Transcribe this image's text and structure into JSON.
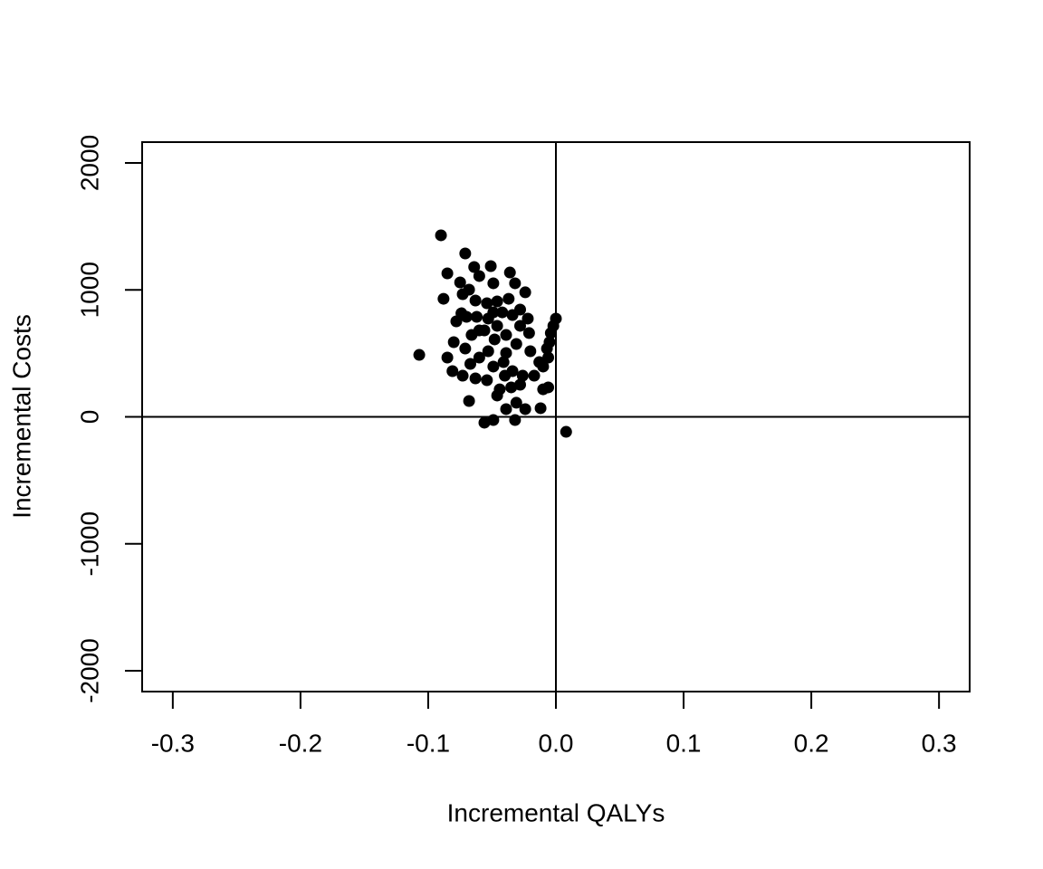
{
  "chart_data": {
    "type": "scatter",
    "x_label": "Incremental QALYs",
    "y_label": "Incremental Costs",
    "color": "#000000",
    "x": [
      -0.09,
      -0.071,
      -0.085,
      -0.064,
      -0.051,
      -0.06,
      -0.036,
      -0.032,
      -0.049,
      -0.075,
      -0.024,
      -0.088,
      -0.068,
      -0.073,
      -0.063,
      -0.054,
      -0.046,
      -0.037,
      -0.028,
      -0.074,
      -0.07,
      -0.078,
      -0.062,
      -0.053,
      -0.042,
      -0.034,
      -0.022,
      0.0,
      -0.002,
      -0.004,
      -0.005,
      -0.007,
      -0.006,
      -0.107,
      -0.085,
      -0.081,
      -0.073,
      -0.068,
      -0.08,
      -0.071,
      -0.066,
      -0.056,
      -0.048,
      -0.039,
      -0.031,
      -0.02,
      -0.013,
      -0.01,
      -0.06,
      -0.049,
      -0.041,
      -0.034,
      -0.026,
      -0.017,
      -0.054,
      -0.063,
      -0.044,
      -0.035,
      -0.028,
      -0.046,
      -0.039,
      -0.031,
      -0.024,
      -0.012,
      -0.006,
      -0.056,
      -0.049,
      -0.032,
      0.008,
      -0.053,
      -0.046,
      -0.039,
      -0.049,
      -0.06,
      -0.028,
      -0.021,
      -0.067,
      -0.04,
      -0.01
    ],
    "values": [
      1430,
      1287,
      1130,
      1180,
      1187,
      1109,
      1137,
      1052,
      1052,
      1059,
      981,
      930,
      1002,
      966,
      916,
      895,
      909,
      930,
      845,
      816,
      788,
      752,
      788,
      774,
      823,
      802,
      774,
      774,
      717,
      660,
      588,
      538,
      467,
      488,
      467,
      360,
      324,
      125,
      588,
      538,
      645,
      681,
      610,
      645,
      574,
      517,
      431,
      396,
      467,
      396,
      431,
      360,
      324,
      324,
      289,
      303,
      217,
      232,
      253,
      168,
      61,
      111,
      61,
      68,
      232,
      -46,
      -25,
      -25,
      -118,
      517,
      717,
      503,
      823,
      681,
      717,
      660,
      417,
      324,
      217
    ],
    "xlim": [
      -0.324,
      0.324
    ],
    "ylim": [
      -2164,
      2164
    ],
    "xticks": [
      -0.3,
      -0.2,
      -0.1,
      {
        "value": 0,
        "label": "0.0"
      },
      0.1,
      0.2,
      0.3
    ],
    "yticks": [
      -2000,
      -1000,
      0,
      1000,
      2000
    ],
    "vline": 0,
    "hline": 0
  }
}
